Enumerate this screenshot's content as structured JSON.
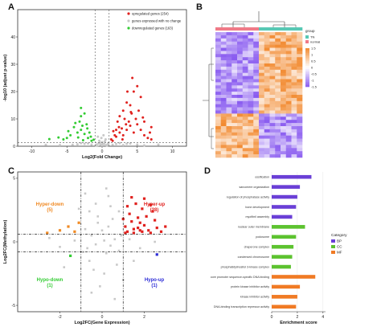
{
  "colors": {
    "up": "#e0211e",
    "down": "#33cc33",
    "ns": "#c8c8c8",
    "hyper_down": "#f08a24",
    "hyper_up": "#e0211e",
    "hypo_down": "#33cc33",
    "hypo_up": "#2b2bd6",
    "bp": "#6a3fd6",
    "cc": "#5cc22f",
    "mf": "#f07a24",
    "group_tn": "#58c8b4",
    "group_normal": "#f07a88",
    "heat_high": "#f28a30",
    "heat_mid": "#ffffff",
    "heat_low": "#8a5cf0"
  },
  "chart_data": [
    {
      "panel": "A",
      "type": "scatter",
      "xlabel": "Log2(Fold Change)",
      "ylabel": "-log10 (adjust p-value)",
      "xlim": [
        -12,
        12
      ],
      "ylim": [
        0,
        50
      ],
      "xticks": [
        "-10",
        "-5",
        "0",
        "5",
        "10"
      ],
      "yticks": [
        "0",
        "10",
        "20",
        "30",
        "40"
      ],
      "threshold_lines": {
        "x": [
          -1,
          1
        ],
        "y": 1.3
      },
      "legend": [
        {
          "label": "upregulated genes (254)",
          "color": "#e0211e"
        },
        {
          "label": "genes expressed with no change",
          "color": "#c8c8c8"
        },
        {
          "label": "downregulated genes (163)",
          "color": "#33cc33"
        }
      ],
      "series": [
        {
          "name": "upregulated genes (254)",
          "points": [
            [
              1.5,
              2
            ],
            [
              2,
              3.5
            ],
            [
              2.5,
              5
            ],
            [
              3,
              4
            ],
            [
              3.5,
              6
            ],
            [
              4,
              7.5
            ],
            [
              4.5,
              5
            ],
            [
              5,
              8
            ],
            [
              2.2,
              9
            ],
            [
              3.2,
              10
            ],
            [
              4.2,
              12
            ],
            [
              1.8,
              4
            ],
            [
              2.8,
              6.5
            ],
            [
              3.8,
              9
            ],
            [
              5.5,
              6
            ],
            [
              6,
              4
            ],
            [
              6.5,
              3
            ],
            [
              7,
              2.5
            ],
            [
              2.5,
              11
            ],
            [
              3,
              13
            ],
            [
              4,
              15
            ],
            [
              4.5,
              20
            ],
            [
              5,
              22
            ],
            [
              5.5,
              18
            ],
            [
              3.5,
              16
            ],
            [
              2,
              6
            ],
            [
              6,
              9
            ],
            [
              7,
              7
            ],
            [
              1.3,
              2.5
            ],
            [
              1.6,
              5.5
            ],
            [
              2.4,
              7
            ],
            [
              3.4,
              8
            ],
            [
              4.8,
              10
            ],
            [
              5.2,
              13
            ],
            [
              3.6,
              20
            ],
            [
              4.3,
              25
            ],
            [
              4.1,
              12.5
            ],
            [
              5.8,
              10.5
            ],
            [
              6.8,
              5
            ],
            [
              2.9,
              2.5
            ]
          ]
        },
        {
          "name": "genes expressed with no change",
          "points": [
            [
              -0.2,
              0.5
            ],
            [
              0.3,
              0.8
            ],
            [
              -0.5,
              1
            ],
            [
              0.6,
              0.4
            ],
            [
              -0.8,
              0.6
            ],
            [
              0.9,
              1.1
            ],
            [
              0,
              1.5
            ],
            [
              -0.4,
              2
            ],
            [
              0.5,
              2.5
            ],
            [
              -0.1,
              3
            ],
            [
              0.2,
              4
            ],
            [
              -0.6,
              3.5
            ],
            [
              0.7,
              0.2
            ],
            [
              -0.9,
              0.3
            ],
            [
              0.1,
              0.9
            ],
            [
              -0.3,
              1.2
            ],
            [
              0.4,
              1.8
            ],
            [
              -0.7,
              0.1
            ],
            [
              0.8,
              0.7
            ],
            [
              0,
              0.3
            ],
            [
              1.5,
              0.5
            ],
            [
              2,
              0.8
            ],
            [
              -1.5,
              0.6
            ],
            [
              -2.5,
              0.9
            ],
            [
              3,
              0.4
            ],
            [
              -3.5,
              0.7
            ],
            [
              4,
              1
            ],
            [
              -4.2,
              0.5
            ],
            [
              5,
              0.6
            ],
            [
              2.5,
              1.1
            ],
            [
              -2,
              1
            ],
            [
              6,
              0.3
            ],
            [
              -6,
              0.4
            ],
            [
              8,
              0.6
            ],
            [
              -8,
              0.5
            ],
            [
              3.5,
              0.9
            ],
            [
              -3,
              1.1
            ]
          ]
        },
        {
          "name": "downregulated genes (163)",
          "points": [
            [
              -1.5,
              2
            ],
            [
              -2,
              3
            ],
            [
              -2.5,
              4.5
            ],
            [
              -3,
              6
            ],
            [
              -3.5,
              5
            ],
            [
              -4,
              7
            ],
            [
              -2.2,
              8
            ],
            [
              -3.2,
              9
            ],
            [
              -1.8,
              5
            ],
            [
              -2.8,
              7.5
            ],
            [
              -4.5,
              4
            ],
            [
              -5,
              3
            ],
            [
              -3,
              11
            ],
            [
              -2.5,
              12
            ],
            [
              -1.6,
              3.5
            ],
            [
              -3.8,
              8.5
            ],
            [
              -2.1,
              6.5
            ],
            [
              -3.4,
              3.2
            ],
            [
              -4.8,
              5.5
            ],
            [
              -1.2,
              2.4
            ],
            [
              -2.7,
              2.2
            ],
            [
              -5.5,
              2.5
            ],
            [
              -6.2,
              3.2
            ],
            [
              -7.5,
              2.6
            ],
            [
              -3,
              14
            ]
          ]
        }
      ]
    },
    {
      "panel": "B",
      "type": "heatmap",
      "legend_title": "group",
      "groups": [
        {
          "label": "TN",
          "color": "#58c8b4"
        },
        {
          "label": "normal",
          "color": "#f07a88"
        }
      ],
      "column_groups": [
        "normal",
        "normal",
        "normal",
        "normal",
        "normal",
        "normal",
        "normal",
        "normal",
        "TN",
        "TN",
        "TN",
        "TN",
        "TN",
        "TN",
        "TN",
        "TN"
      ],
      "colorbar_ticks": [
        "1.5",
        "1",
        "0.5",
        "0",
        "-0.5",
        "-1",
        "-1.5"
      ],
      "blocks": [
        {
          "rows": 26,
          "normal_value": -0.9,
          "tn_value": 0.9
        },
        {
          "rows": 14,
          "normal_value": 0.9,
          "tn_value": -0.9
        }
      ]
    },
    {
      "panel": "C",
      "type": "scatter",
      "xlabel": "Log2FC(Gene Expression)",
      "ylabel": "Log2FC(Methylation)",
      "xlim": [
        -4,
        4
      ],
      "ylim": [
        -5.5,
        5.5
      ],
      "xticks": [
        "-2",
        "0",
        "2"
      ],
      "yticks": [
        "-5",
        "0",
        "5"
      ],
      "threshold_lines": {
        "x": [
          -1,
          1
        ],
        "y": [
          -0.8,
          0.6
        ]
      },
      "annotations": [
        {
          "label": "Hyper-down",
          "count": "(5)",
          "color": "#f08a24",
          "quadrant": "top-left"
        },
        {
          "label": "Hyper-up",
          "count": "(28)",
          "color": "#e0211e",
          "quadrant": "top-right"
        },
        {
          "label": "Hypo-down",
          "count": "(1)",
          "color": "#33cc33",
          "quadrant": "bottom-left"
        },
        {
          "label": "Hypo-up",
          "count": "(1)",
          "color": "#2b2bd6",
          "quadrant": "bottom-right"
        }
      ],
      "series": [
        {
          "name": "Hyper-down",
          "points": [
            [
              -1.3,
              0.8
            ],
            [
              -1.6,
              1.2
            ],
            [
              -2.0,
              0.9
            ],
            [
              -1.1,
              1.5
            ],
            [
              -2.6,
              0.7
            ]
          ]
        },
        {
          "name": "Hyper-up",
          "points": [
            [
              1.2,
              0.8
            ],
            [
              1.5,
              1.0
            ],
            [
              1.8,
              0.9
            ],
            [
              2.0,
              1.3
            ],
            [
              2.3,
              0.7
            ],
            [
              1.4,
              1.6
            ],
            [
              1.7,
              1.9
            ],
            [
              2.6,
              1.1
            ],
            [
              1.1,
              1.2
            ],
            [
              1.3,
              2.2
            ],
            [
              2.1,
              2.0
            ],
            [
              1.9,
              2.6
            ],
            [
              1.6,
              3.0
            ],
            [
              2.4,
              2.4
            ],
            [
              1.2,
              2.8
            ],
            [
              1.8,
              1.5
            ],
            [
              2.2,
              0.9
            ],
            [
              1.5,
              0.7
            ],
            [
              2.8,
              0.8
            ],
            [
              1.0,
              1.8
            ],
            [
              2.0,
              3.4
            ],
            [
              1.4,
              3.5
            ],
            [
              2.5,
              1.7
            ],
            [
              3.0,
              1.2
            ],
            [
              1.7,
              1.1
            ],
            [
              2.3,
              2.9
            ],
            [
              1.9,
              0.8
            ],
            [
              1.1,
              0.7
            ]
          ]
        },
        {
          "name": "Hypo-down",
          "points": [
            [
              -1.5,
              -1.1
            ]
          ]
        },
        {
          "name": "Hypo-up",
          "points": [
            [
              2.6,
              -1.0
            ]
          ]
        },
        {
          "name": "Not significant",
          "points": [
            [
              -0.5,
              0.5
            ],
            [
              0.3,
              1.2
            ],
            [
              -0.2,
              2.0
            ],
            [
              0.4,
              -0.3
            ],
            [
              -0.6,
              -1.5
            ],
            [
              0.1,
              -2.5
            ],
            [
              -0.3,
              3.0
            ],
            [
              0.6,
              0.2
            ],
            [
              -0.8,
              1.0
            ],
            [
              0.2,
              -0.9
            ],
            [
              0.8,
              2.4
            ],
            [
              -0.1,
              -3.5
            ],
            [
              0.5,
              1.8
            ],
            [
              -0.7,
              -0.5
            ],
            [
              0.0,
              0.9
            ],
            [
              0.7,
              -1.8
            ],
            [
              -0.4,
              -2.2
            ],
            [
              0.9,
              0.5
            ],
            [
              -0.9,
              -0.8
            ],
            [
              0.3,
              3.6
            ],
            [
              -0.5,
              -4.0
            ],
            [
              0.2,
              4.2
            ],
            [
              1.3,
              0.2
            ],
            [
              -1.3,
              0.1
            ],
            [
              1.8,
              -0.5
            ],
            [
              -2.0,
              -0.4
            ],
            [
              2.5,
              0.0
            ],
            [
              -2.5,
              0.3
            ],
            [
              1.0,
              -3.0
            ],
            [
              -1.1,
              2.6
            ],
            [
              0.6,
              -4.5
            ],
            [
              -0.2,
              1.5
            ],
            [
              0.4,
              2.8
            ],
            [
              -0.6,
              2.4
            ],
            [
              1.5,
              -1.5
            ],
            [
              -1.8,
              -2.0
            ],
            [
              0.1,
              0.1
            ],
            [
              -0.3,
              -0.2
            ],
            [
              0.8,
              -0.7
            ],
            [
              -0.8,
              3.8
            ]
          ]
        }
      ]
    },
    {
      "panel": "D",
      "type": "bar",
      "orientation": "horizontal",
      "xlabel": "Enrichment score",
      "xlim": [
        0,
        4.2
      ],
      "xticks": [
        "0",
        "2",
        "4"
      ],
      "legend_title": "Category",
      "legend": [
        {
          "label": "BP",
          "color": "#6a3fd6"
        },
        {
          "label": "CC",
          "color": "#5cc22f"
        },
        {
          "label": "MF",
          "color": "#f07a24"
        }
      ],
      "categories": [
        "ossification",
        "sarcomere organization",
        "regulation of phosphatase activity",
        "bone development",
        "myofibril assembly",
        "nuclear outer membrane",
        "podosome",
        "chaperone complex",
        "condensed chromosome",
        "phosphatidylinositol 3-kinase complex",
        "core promoter sequence-specific DNA binding",
        "protein kinase inhibitor activity",
        "kinase inhibitor activity",
        "DNA-binding transcription repressor activity"
      ],
      "category_groups": [
        "BP",
        "BP",
        "BP",
        "BP",
        "BP",
        "CC",
        "CC",
        "CC",
        "CC",
        "CC",
        "MF",
        "MF",
        "MF",
        "MF"
      ],
      "values": [
        3.1,
        2.2,
        2.0,
        1.9,
        1.6,
        2.6,
        1.9,
        1.7,
        1.6,
        1.5,
        3.4,
        2.2,
        2.0,
        1.9
      ]
    }
  ]
}
